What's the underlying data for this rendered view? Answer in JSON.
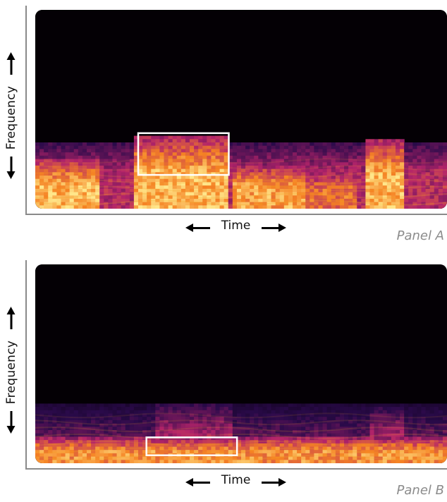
{
  "chart_data": [
    {
      "type": "heatmap",
      "panel_label": "Panel A",
      "xlabel": "Time",
      "ylabel": "Frequency",
      "axis_arrows": true,
      "colormap": "inferno",
      "highlight_box": {
        "time_range": [
          0.25,
          0.47
        ],
        "freq_range": [
          0.17,
          0.38
        ]
      },
      "energy_regions": [
        {
          "time_range": [
            0.0,
            1.0
          ],
          "freq_range": [
            0.0,
            0.33
          ],
          "level": 0.55
        },
        {
          "time_range": [
            0.0,
            0.16
          ],
          "freq_range": [
            0.0,
            0.25
          ],
          "level": 0.95
        },
        {
          "time_range": [
            0.24,
            0.47
          ],
          "freq_range": [
            0.0,
            0.36
          ],
          "level": 0.95
        },
        {
          "time_range": [
            0.48,
            0.66
          ],
          "freq_range": [
            0.0,
            0.22
          ],
          "level": 0.9
        },
        {
          "time_range": [
            0.66,
            0.78
          ],
          "freq_range": [
            0.0,
            0.2
          ],
          "level": 0.75
        },
        {
          "time_range": [
            0.8,
            0.9
          ],
          "freq_range": [
            0.0,
            0.35
          ],
          "level": 0.95
        }
      ]
    },
    {
      "type": "heatmap",
      "panel_label": "Panel B",
      "xlabel": "Time",
      "ylabel": "Frequency",
      "axis_arrows": true,
      "colormap": "inferno",
      "highlight_box": {
        "time_range": [
          0.27,
          0.49
        ],
        "freq_range": [
          0.04,
          0.13
        ]
      },
      "energy_regions": [
        {
          "time_range": [
            0.0,
            1.0
          ],
          "freq_range": [
            0.0,
            0.3
          ],
          "level": 0.35
        },
        {
          "time_range": [
            0.0,
            1.0
          ],
          "freq_range": [
            0.0,
            0.13
          ],
          "level": 0.85
        },
        {
          "time_range": [
            0.29,
            0.48
          ],
          "freq_range": [
            0.0,
            0.3
          ],
          "level": 0.5
        },
        {
          "time_range": [
            0.81,
            0.9
          ],
          "freq_range": [
            0.0,
            0.28
          ],
          "level": 0.5
        }
      ]
    }
  ],
  "colors": {
    "background": "#040005",
    "low": "#2a0a4a",
    "mid": "#b3246a",
    "high": "#f5a623",
    "peak": "#ffe68a",
    "box": "#ffffff",
    "axis": "#8a8a8a",
    "panel_label": "#8c8c8c"
  }
}
